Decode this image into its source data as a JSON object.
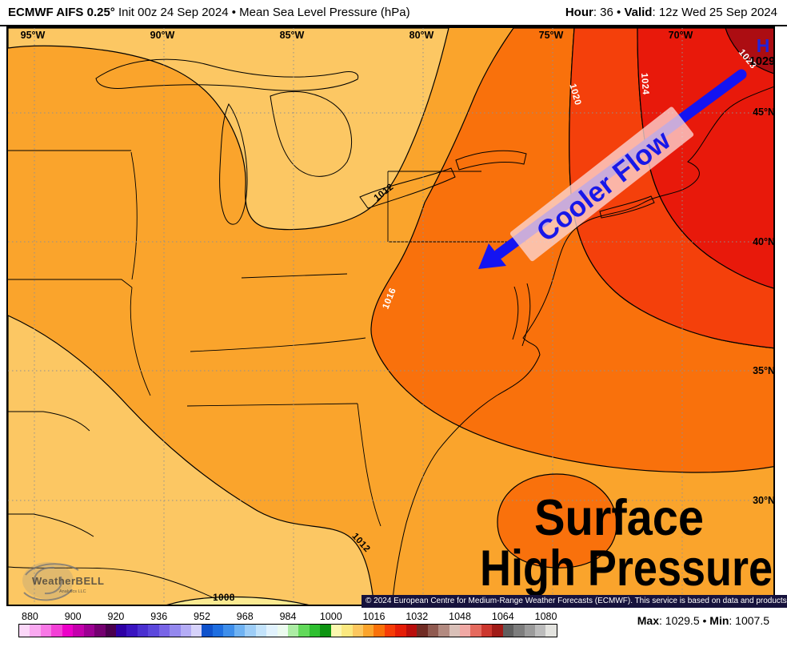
{
  "title_bar": {
    "model": "ECMWF AIFS 0.25°",
    "subtitle": " Init 00z 24 Sep 2024 • Mean Sea Level Pressure (hPa)",
    "hour_label": "Hour",
    "hour_text": ": 36 • ",
    "valid_label": "Valid",
    "valid_text": ": 12z Wed 25 Sep 2024"
  },
  "map": {
    "lon_labels": [
      "95°W",
      "90°W",
      "85°W",
      "80°W",
      "75°W",
      "70°W"
    ],
    "lat_labels": [
      "45°N",
      "40°N",
      "35°N",
      "30°N"
    ],
    "contour_labels": [
      {
        "text": "1012",
        "color": "#000000"
      },
      {
        "text": "1016",
        "color": "#ffffff"
      },
      {
        "text": "1020",
        "color": "#ffffff"
      },
      {
        "text": "1024",
        "color": "#ffffff"
      },
      {
        "text": "1028",
        "color": "#ffffff"
      },
      {
        "text": "1012",
        "color": "#000000"
      },
      {
        "text": "1008",
        "color": "#000000"
      }
    ],
    "high_marker": {
      "symbol": "H",
      "value": "1029"
    },
    "arrow_label": "Cooler Flow",
    "overlay_line1": "Surface",
    "overlay_line2": "High Pressure",
    "watermark": {
      "name": "WeatherBELL",
      "sub": "Analytics LLC"
    }
  },
  "colors": {
    "band_1004_1008": "#FBEA91",
    "band_1008_1012": "#FCC763",
    "band_1012_1016": "#FAA42C",
    "band_1016_1020": "#F9710C",
    "band_1020_1024": "#F4400B",
    "band_1024_1028": "#E8190B",
    "band_1028_1032": "#AC0D12",
    "arrow_blue": "#1414F2",
    "high_blue": "#2222DC",
    "annotation_text": "#1818E8",
    "annotation_bg": "rgba(252,214,212,0.78)",
    "contour_line": "#000000",
    "graticule": "#909090",
    "copyright_bg": "#16123C"
  },
  "colorbar": {
    "units": "hPa",
    "cells": [
      "#FBD7F8",
      "#F9A9F0",
      "#F878E6",
      "#F340D6",
      "#EC00C8",
      "#C400AC",
      "#9C0092",
      "#740070",
      "#4A004E",
      "#2E00A4",
      "#3A14C0",
      "#4A30D0",
      "#5C48DC",
      "#7864E6",
      "#9488EE",
      "#B4ACF5",
      "#D6D2FA",
      "#0F52CC",
      "#1E6EE0",
      "#3E8EEA",
      "#6FB2F2",
      "#9DCDF7",
      "#C3E3FB",
      "#E1F2FD",
      "#ECFBEF",
      "#ACECA4",
      "#62D95A",
      "#2EBF30",
      "#0E9412",
      "#FBF7AE",
      "#FBE87F",
      "#FCC75F",
      "#FBA42C",
      "#F97109",
      "#F63C07",
      "#E51D07",
      "#B90E0C",
      "#702C24",
      "#8F5A50",
      "#B28A80",
      "#D9C0B8",
      "#F0A8A4",
      "#E56A5E",
      "#CC372E",
      "#A01B17",
      "#5F5F5F",
      "#7D7D7D",
      "#9B9B9B",
      "#BCBCBC",
      "#E3E3DF"
    ],
    "ticks": [
      {
        "label": "880",
        "cell": 1
      },
      {
        "label": "900",
        "cell": 5
      },
      {
        "label": "920",
        "cell": 9
      },
      {
        "label": "936",
        "cell": 13
      },
      {
        "label": "952",
        "cell": 17
      },
      {
        "label": "968",
        "cell": 21
      },
      {
        "label": "984",
        "cell": 25
      },
      {
        "label": "1000",
        "cell": 29
      },
      {
        "label": "1016",
        "cell": 33
      },
      {
        "label": "1032",
        "cell": 37
      },
      {
        "label": "1048",
        "cell": 41
      },
      {
        "label": "1064",
        "cell": 45
      },
      {
        "label": "1080",
        "cell": 49
      }
    ]
  },
  "footer": {
    "copyright": "© 2024 European Centre for Medium-Range Weather Forecasts (ECMWF). This service is based on data and products of the ECMWF.",
    "max_label": "Max",
    "max_text": ": 1029.5 • ",
    "min_label": "Min",
    "min_text": ": 1007.5"
  }
}
